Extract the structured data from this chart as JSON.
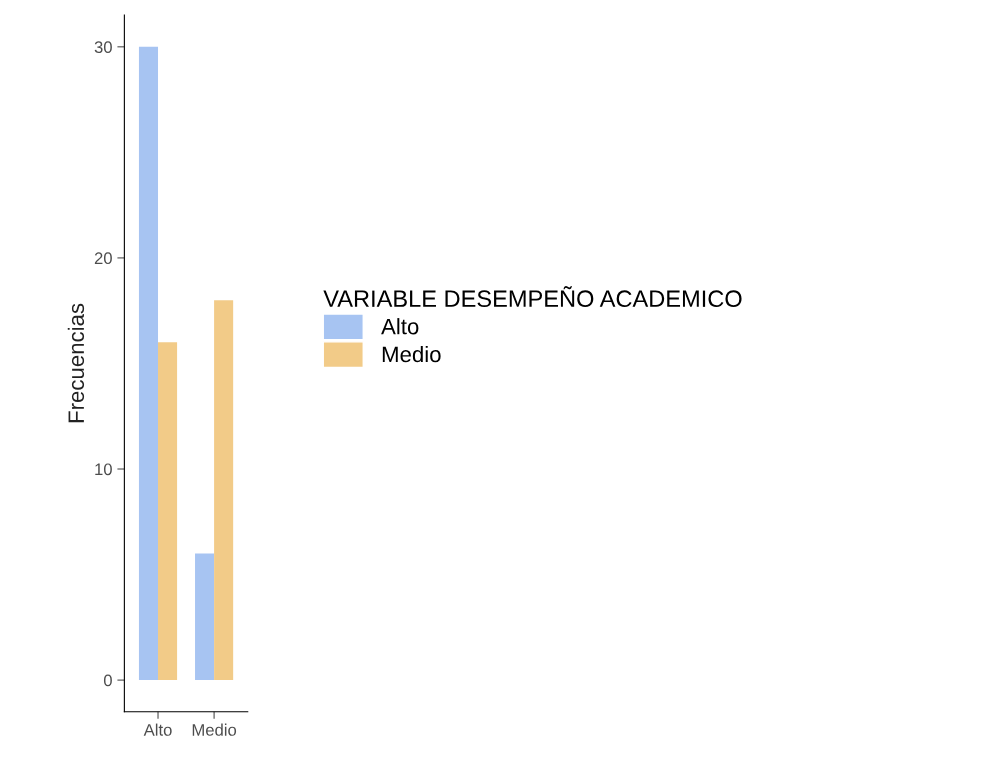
{
  "chart_data": {
    "type": "bar",
    "ylabel": "Frecuencias",
    "legend_title": "VARIABLE DESEMPEÑO ACADEMICO",
    "categories": [
      "Alto",
      "Medio"
    ],
    "series": [
      {
        "name": "Alto",
        "color": "#a7c4f2",
        "values": [
          30,
          6
        ]
      },
      {
        "name": "Medio",
        "color": "#f2cb88",
        "values": [
          16,
          18
        ]
      }
    ],
    "ylim": [
      -1.5,
      31.5
    ],
    "yticks": [
      0,
      10,
      20,
      30
    ],
    "grid": false,
    "legend": "right"
  }
}
